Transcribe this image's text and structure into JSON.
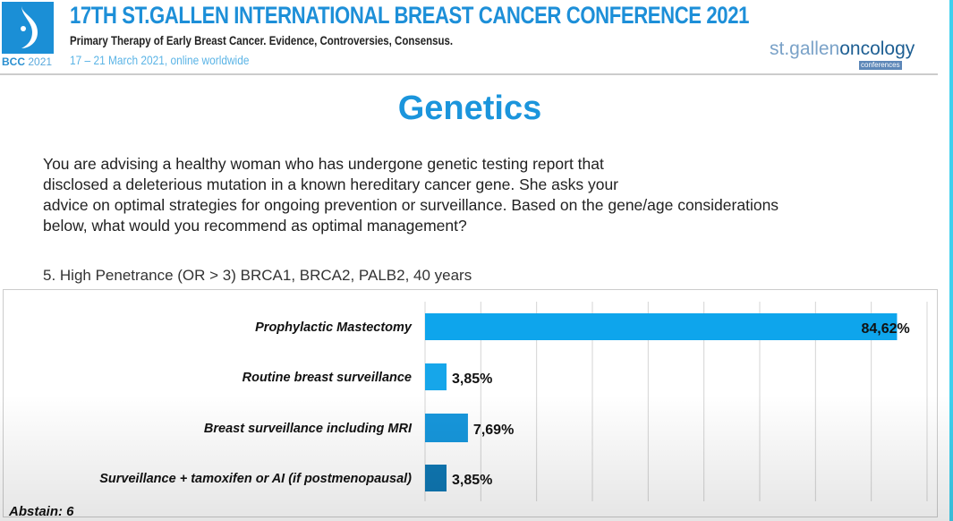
{
  "header": {
    "logo_text": "BCC",
    "logo_year": "2021",
    "title": "17TH ST.GALLEN INTERNATIONAL BREAST CANCER CONFERENCE 2021",
    "subtitle": "Primary Therapy of Early Breast Cancer. Evidence, Controversies, Consensus.",
    "dates": "17 – 21 March 2021, online worldwide",
    "brand_a": "st.gallen",
    "brand_b": "oncology",
    "brand_c": "conferences"
  },
  "slide": {
    "title": "Genetics",
    "question": "You are advising a healthy woman who has undergone genetic testing report that disclosed a deleterious mutation in a known hereditary cancer gene.  She asks your advice on optimal strategies for ongoing prevention or surveillance. Based on the gene/age considerations below, what would you recommend as optimal  management?",
    "question_lines": [
      "You are advising a healthy woman who has undergone genetic testing report that",
      "disclosed a deleterious mutation in a known hereditary cancer gene.  She asks your",
      "advice on optimal strategies for ongoing prevention or surveillance. Based on the gene/age considerations",
      "below, what would you recommend as optimal  management?"
    ],
    "subquestion": "5. High Penetrance (OR > 3) BRCA1, BRCA2, PALB2, 40 years",
    "abstain": "Abstain: 6"
  },
  "chart_data": {
    "type": "bar",
    "orientation": "horizontal",
    "categories": [
      "Prophylactic Mastectomy",
      "Routine breast surveillance",
      "Breast surveillance including MRI",
      "Surveillance + tamoxifen or AI (if postmenopausal)"
    ],
    "values": [
      84.62,
      3.85,
      7.69,
      3.85
    ],
    "labels": [
      "84,62%",
      "3,85%",
      "7,69%",
      "3,85%"
    ],
    "xlim": [
      0,
      90
    ],
    "grid_step": 10,
    "grid": true,
    "colors": [
      "#0ea5ec",
      "#16a6ea",
      "#1797dc",
      "#0f78b4"
    ]
  }
}
